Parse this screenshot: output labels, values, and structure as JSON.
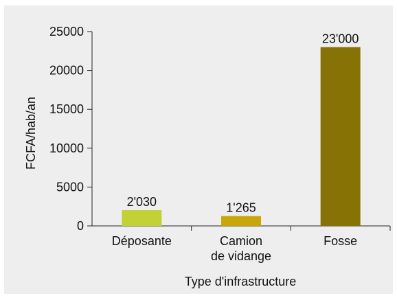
{
  "chart_data": {
    "type": "bar",
    "categories": [
      "Déposante",
      "Camion de vidange",
      "Fosse"
    ],
    "category_lines": [
      [
        "Déposante"
      ],
      [
        "Camion",
        "de vidange"
      ],
      [
        "Fosse"
      ]
    ],
    "values": [
      2030,
      1265,
      23000
    ],
    "value_labels": [
      "2'030",
      "1'265",
      "23'000"
    ],
    "colors": [
      "#c2d136",
      "#c9a70c",
      "#877205"
    ],
    "xlabel": "Type d'infrastructure",
    "ylabel": "FCFA/hab/an",
    "ylim": [
      0,
      25000
    ],
    "yticks": [
      0,
      5000,
      10000,
      15000,
      20000,
      25000
    ],
    "ytick_labels": [
      "0",
      "5000",
      "10000",
      "15000",
      "20000",
      "25000"
    ],
    "background": "#eeeeee",
    "grid": false,
    "legend": "none"
  }
}
